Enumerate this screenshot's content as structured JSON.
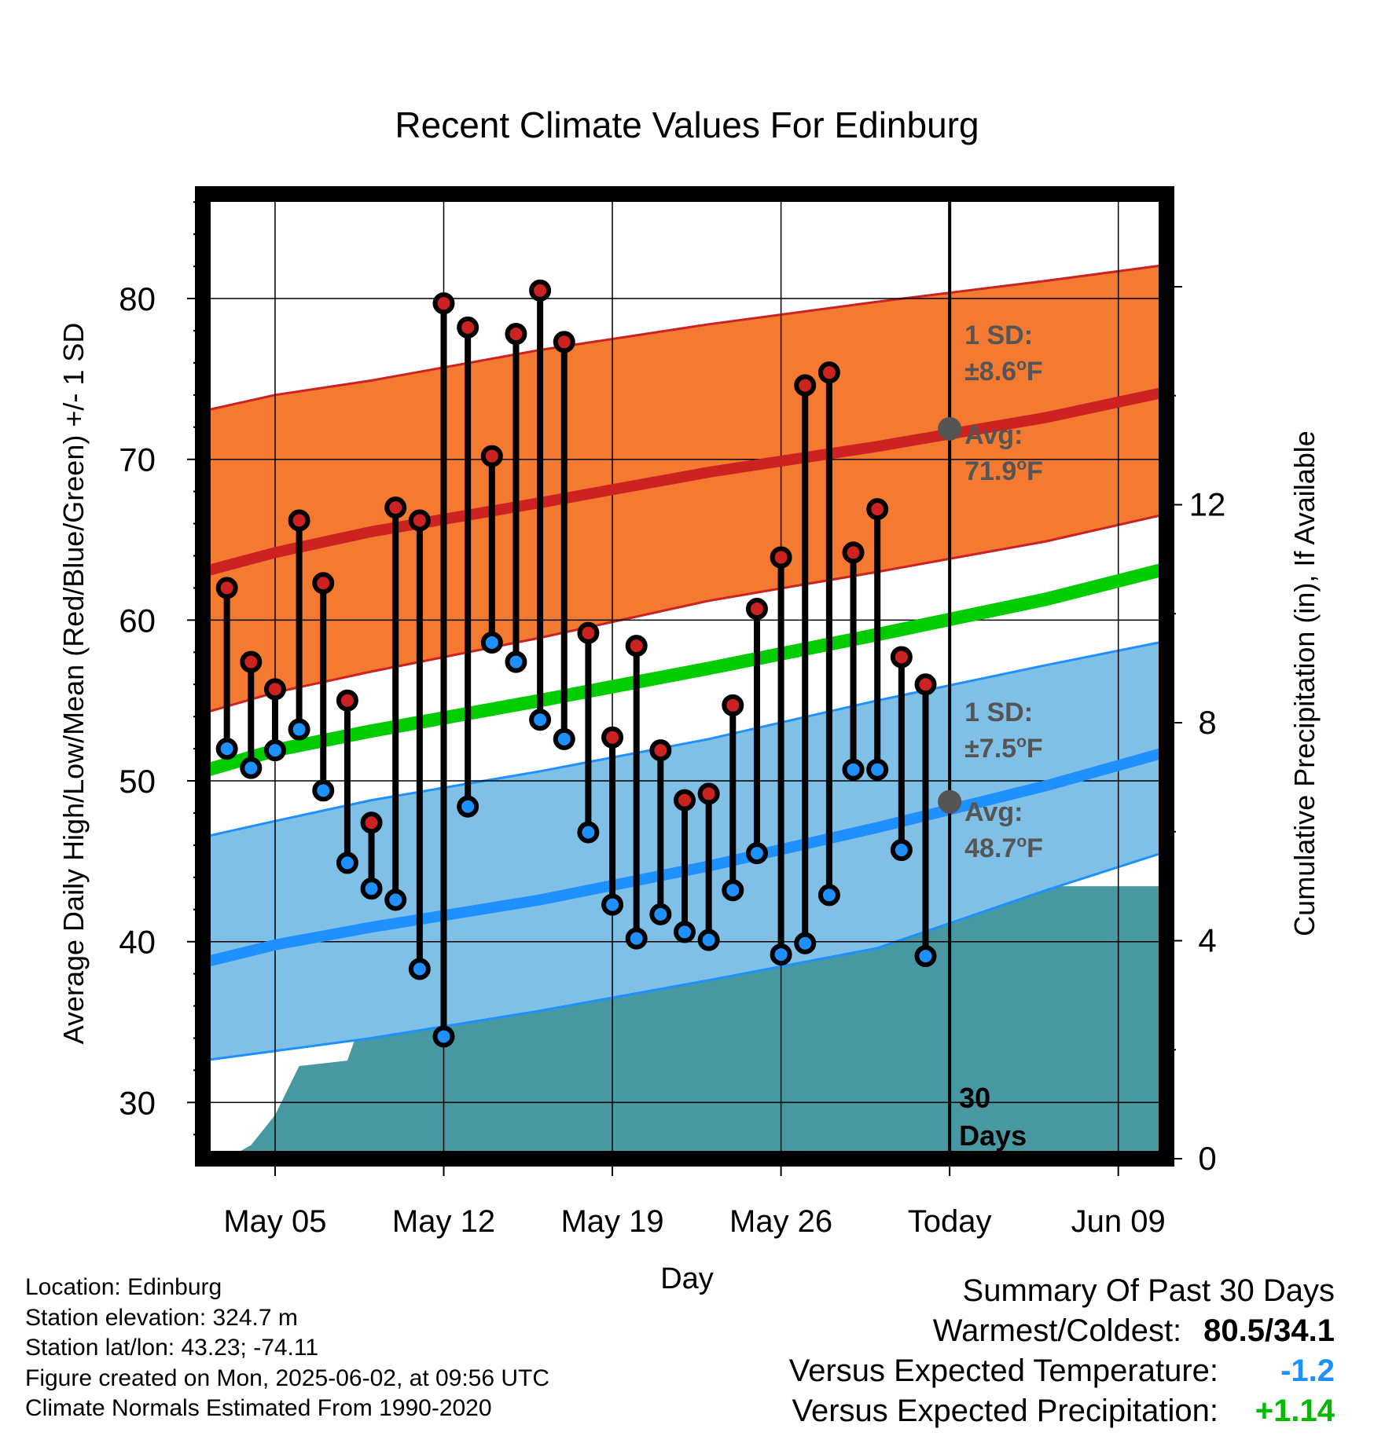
{
  "chart_data": {
    "type": "line",
    "title": "Recent Climate Values For Edinburg",
    "xlabel": "Day",
    "ylabel": "Average Daily High/Low/Mean (Red/Blue/Green) +/- 1 SD",
    "y2label": "Cumulative Precipitation (in), If Available",
    "ylim": [
      26.5,
      86.5
    ],
    "y_ticks": [
      "30",
      "40",
      "50",
      "60",
      "70",
      "80"
    ],
    "y2lim": [
      0,
      17.7
    ],
    "y2_ticks": [
      "0",
      "4",
      "8",
      "12"
    ],
    "x_ticks": [
      "May 05",
      "May 12",
      "May 19",
      "May 26",
      "Today",
      "Jun 09"
    ],
    "x_tick_dates": [
      "2025-05-05",
      "2025-05-12",
      "2025-05-19",
      "2025-05-26",
      "2025-06-02",
      "2025-06-09"
    ],
    "xlim": [
      "2025-05-02",
      "2025-06-11"
    ],
    "grid": true,
    "today": "2025-06-02",
    "days_label": [
      "30",
      "Days"
    ],
    "colors": {
      "high": "#cc2222",
      "high_band": "#f47a31",
      "low": "#1e90ff",
      "low_band": "#80c0e6",
      "mean": "#00cc00",
      "precip": "#4898a2"
    },
    "observed": {
      "dates": [
        "2025-05-03",
        "2025-05-04",
        "2025-05-05",
        "2025-05-06",
        "2025-05-07",
        "2025-05-08",
        "2025-05-09",
        "2025-05-10",
        "2025-05-11",
        "2025-05-12",
        "2025-05-13",
        "2025-05-14",
        "2025-05-15",
        "2025-05-16",
        "2025-05-17",
        "2025-05-18",
        "2025-05-19",
        "2025-05-20",
        "2025-05-21",
        "2025-05-22",
        "2025-05-23",
        "2025-05-24",
        "2025-05-25",
        "2025-05-26",
        "2025-05-27",
        "2025-05-28",
        "2025-05-29",
        "2025-05-30",
        "2025-05-31",
        "2025-06-01"
      ],
      "high": [
        62.0,
        57.4,
        55.7,
        66.2,
        62.3,
        55.0,
        47.4,
        67.0,
        66.2,
        79.7,
        78.2,
        70.2,
        77.8,
        80.5,
        77.3,
        59.2,
        52.7,
        58.4,
        51.9,
        48.8,
        49.2,
        54.7,
        60.7,
        63.9,
        74.6,
        75.4,
        64.2,
        66.9,
        57.7,
        56.0
      ],
      "low": [
        52.0,
        50.8,
        51.9,
        53.2,
        49.4,
        44.9,
        43.3,
        42.6,
        38.3,
        34.1,
        48.4,
        58.6,
        57.4,
        53.8,
        52.6,
        46.8,
        42.3,
        40.2,
        41.7,
        40.6,
        40.1,
        43.2,
        45.5,
        39.2,
        39.9,
        42.9,
        50.7,
        50.7,
        45.7,
        39.1
      ]
    },
    "normals": {
      "dates": [
        "2025-05-02",
        "2025-05-05",
        "2025-05-09",
        "2025-05-16",
        "2025-05-23",
        "2025-05-30",
        "2025-06-06",
        "2025-06-11"
      ],
      "high_avg": [
        63.0,
        64.2,
        65.5,
        67.3,
        69.2,
        70.8,
        72.6,
        74.2
      ],
      "high_plus_sd": [
        73.0,
        74.0,
        74.9,
        76.8,
        78.4,
        79.8,
        81.1,
        82.1
      ],
      "high_minus_sd": [
        54.2,
        55.5,
        56.8,
        58.9,
        61.2,
        63.0,
        64.9,
        66.6
      ],
      "low_avg": [
        38.7,
        39.8,
        40.9,
        42.6,
        44.7,
        47.1,
        49.7,
        51.8
      ],
      "low_plus_sd": [
        46.5,
        47.5,
        48.8,
        50.6,
        52.6,
        55.0,
        57.2,
        58.7
      ],
      "low_minus_sd": [
        32.6,
        33.2,
        34.0,
        35.7,
        37.6,
        39.6,
        43.2,
        45.6
      ],
      "mean_avg": [
        50.6,
        51.9,
        53.1,
        55.0,
        57.0,
        59.1,
        61.3,
        63.2
      ]
    },
    "precipitation": {
      "dates": [
        "2025-05-02",
        "2025-05-03",
        "2025-05-04",
        "2025-05-05",
        "2025-05-06",
        "2025-05-07",
        "2025-05-08",
        "2025-05-09",
        "2025-05-10",
        "2025-05-11",
        "2025-05-12",
        "2025-05-13",
        "2025-05-14",
        "2025-05-15",
        "2025-05-16",
        "2025-05-17",
        "2025-05-18",
        "2025-05-19",
        "2025-05-20",
        "2025-05-21",
        "2025-05-22",
        "2025-05-23",
        "2025-05-24",
        "2025-05-25",
        "2025-05-26",
        "2025-05-27",
        "2025-05-28",
        "2025-05-29",
        "2025-05-30",
        "2025-05-31",
        "2025-06-01",
        "2025-06-02",
        "2025-06-11"
      ],
      "cumulative": [
        0.0,
        0.0,
        0.25,
        0.8,
        1.7,
        1.75,
        1.8,
        3.05,
        3.1,
        3.1,
        3.1,
        3.1,
        3.1,
        3.1,
        3.1,
        3.1,
        3.95,
        3.95,
        3.95,
        3.95,
        4.0,
        4.15,
        4.25,
        4.25,
        4.3,
        4.35,
        4.35,
        4.35,
        4.35,
        4.35,
        5.0,
        5.0,
        5.0
      ]
    },
    "annotations": {
      "high_sd_label": "1 SD:",
      "high_sd_value": "±8.6",
      "high_avg_label": "Avg:",
      "high_avg_value": "71.9",
      "low_sd_label": "1 SD:",
      "low_sd_value": "±7.5",
      "low_avg_label": "Avg:",
      "low_avg_value": "48.7",
      "unit": "F",
      "degree": "o",
      "high_avg_today": 71.9,
      "low_avg_today": 48.7
    }
  },
  "footer": {
    "location": "Location: Edinburg",
    "elevation": "Station elevation: 324.7 m",
    "latlon": "Station lat/lon: 43.23; -74.11",
    "created": "Figure created on Mon, 2025-06-02, at 09:56 UTC",
    "normals": "Climate Normals Estimated From 1990-2020"
  },
  "summary": {
    "title": "Summary Of Past 30 Days",
    "warmest_label": "Warmest/Coldest:",
    "warmest_value": "80.5/34.1",
    "temp_label": "Versus Expected Temperature:",
    "temp_value": "-1.2",
    "temp_color": "#1e90ff",
    "precip_label": "Versus Expected Precipitation:",
    "precip_value": "+1.14",
    "precip_color": "#00bb00"
  }
}
